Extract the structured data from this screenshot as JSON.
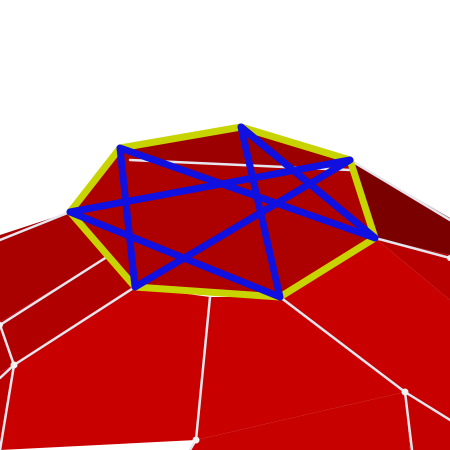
{
  "scene": {
    "description_hidden": "",
    "colors": {
      "background": "#ffffff",
      "face_front": "#cc0000",
      "face_side": "#a50000",
      "face_dark": "#7a0000",
      "face_top": "#b30000",
      "edge_white": "#e6e6ee",
      "vertex_white": "#f2f2f2",
      "heptagon": "#c8d400",
      "star": "#1010e0"
    },
    "shapes": {
      "outer_polygon": "heptagon",
      "inner_polygon": "heptagram {7/3}"
    }
  }
}
